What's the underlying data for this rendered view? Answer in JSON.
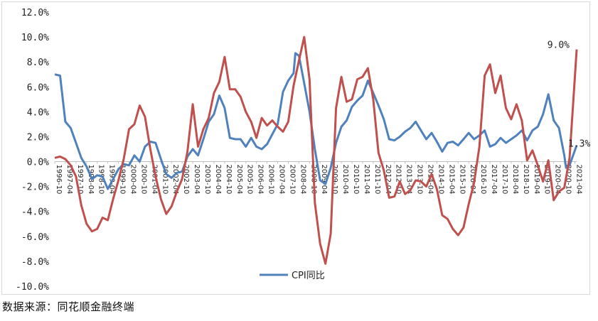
{
  "chart_data": {
    "type": "line",
    "title": "",
    "xlabel": "",
    "ylabel": "",
    "ylim": [
      -10,
      12
    ],
    "yticks": [
      "12.0%",
      "10.0%",
      "8.0%",
      "6.0%",
      "4.0%",
      "2.0%",
      "0.0%",
      "-2.0%",
      "-4.0%",
      "-6.0%",
      "-8.0%",
      "-10.0%"
    ],
    "xticks": [
      "1996-10",
      "1997-04",
      "1997-10",
      "1998-04",
      "1998-10",
      "1999-04",
      "1999-10",
      "2000-04",
      "2000-10",
      "2001-04",
      "2001-10",
      "2002-04",
      "2002-10",
      "2003-04",
      "2003-10",
      "2004-04",
      "2004-10",
      "2005-04",
      "2005-10",
      "2006-04",
      "2006-10",
      "2007-04",
      "2007-10",
      "2008-04",
      "2008-10",
      "2009-04",
      "2009-10",
      "2010-04",
      "2010-10",
      "2011-04",
      "2011-10",
      "2012-04",
      "2012-10",
      "2013-04",
      "2013-10",
      "2014-04",
      "2014-10",
      "2015-04",
      "2015-10",
      "2016-04",
      "2016-10",
      "2017-04",
      "2017-10",
      "2018-04",
      "2018-10",
      "2019-04",
      "2019-10",
      "2020-04",
      "2020-10",
      "2021-04"
    ],
    "grid": false,
    "legend": "bottom",
    "series": [
      {
        "name": "CPI同比",
        "color": "#4f81bd",
        "points": [
          [
            "1996-10",
            7.0
          ],
          [
            "1997-01",
            6.9
          ],
          [
            "1997-04",
            3.2
          ],
          [
            "1997-07",
            2.7
          ],
          [
            "1997-10",
            1.5
          ],
          [
            "1998-01",
            0.3
          ],
          [
            "1998-04",
            -0.4
          ],
          [
            "1998-07",
            -1.4
          ],
          [
            "1998-10",
            -1.1
          ],
          [
            "1999-01",
            -1.2
          ],
          [
            "1999-04",
            -2.2
          ],
          [
            "1999-07",
            -1.4
          ],
          [
            "1999-10",
            -0.6
          ],
          [
            "2000-01",
            -0.2
          ],
          [
            "2000-04",
            -0.3
          ],
          [
            "2000-07",
            0.5
          ],
          [
            "2000-10",
            0.0
          ],
          [
            "2001-01",
            1.2
          ],
          [
            "2001-04",
            1.6
          ],
          [
            "2001-07",
            1.5
          ],
          [
            "2001-10",
            0.2
          ],
          [
            "2002-01",
            -1.0
          ],
          [
            "2002-04",
            -1.3
          ],
          [
            "2002-07",
            -0.9
          ],
          [
            "2002-10",
            -0.8
          ],
          [
            "2003-01",
            0.4
          ],
          [
            "2003-04",
            1.0
          ],
          [
            "2003-07",
            0.5
          ],
          [
            "2003-10",
            1.8
          ],
          [
            "2004-01",
            3.2
          ],
          [
            "2004-04",
            3.8
          ],
          [
            "2004-07",
            5.3
          ],
          [
            "2004-10",
            4.3
          ],
          [
            "2005-01",
            1.9
          ],
          [
            "2005-04",
            1.8
          ],
          [
            "2005-07",
            1.8
          ],
          [
            "2005-10",
            1.2
          ],
          [
            "2006-01",
            1.9
          ],
          [
            "2006-04",
            1.2
          ],
          [
            "2006-07",
            1.0
          ],
          [
            "2006-10",
            1.4
          ],
          [
            "2007-01",
            2.2
          ],
          [
            "2007-04",
            3.0
          ],
          [
            "2007-07",
            5.6
          ],
          [
            "2007-10",
            6.5
          ],
          [
            "2008-01",
            7.1
          ],
          [
            "2008-02",
            8.7
          ],
          [
            "2008-04",
            8.5
          ],
          [
            "2008-07",
            6.3
          ],
          [
            "2008-10",
            4.0
          ],
          [
            "2009-01",
            1.0
          ],
          [
            "2009-04",
            -1.5
          ],
          [
            "2009-07",
            -1.8
          ],
          [
            "2009-10",
            -0.5
          ],
          [
            "2010-01",
            1.5
          ],
          [
            "2010-04",
            2.8
          ],
          [
            "2010-07",
            3.3
          ],
          [
            "2010-10",
            4.4
          ],
          [
            "2011-01",
            4.9
          ],
          [
            "2011-04",
            5.3
          ],
          [
            "2011-07",
            6.5
          ],
          [
            "2011-10",
            5.5
          ],
          [
            "2012-01",
            4.5
          ],
          [
            "2012-04",
            3.4
          ],
          [
            "2012-07",
            1.8
          ],
          [
            "2012-10",
            1.7
          ],
          [
            "2013-01",
            2.0
          ],
          [
            "2013-04",
            2.4
          ],
          [
            "2013-07",
            2.7
          ],
          [
            "2013-10",
            3.2
          ],
          [
            "2014-01",
            2.5
          ],
          [
            "2014-04",
            1.8
          ],
          [
            "2014-07",
            2.3
          ],
          [
            "2014-10",
            1.6
          ],
          [
            "2015-01",
            0.8
          ],
          [
            "2015-04",
            1.5
          ],
          [
            "2015-07",
            1.6
          ],
          [
            "2015-10",
            1.3
          ],
          [
            "2016-01",
            1.8
          ],
          [
            "2016-04",
            2.3
          ],
          [
            "2016-07",
            1.8
          ],
          [
            "2016-10",
            2.1
          ],
          [
            "2017-01",
            2.5
          ],
          [
            "2017-04",
            1.2
          ],
          [
            "2017-07",
            1.4
          ],
          [
            "2017-10",
            1.9
          ],
          [
            "2018-01",
            1.5
          ],
          [
            "2018-04",
            1.8
          ],
          [
            "2018-07",
            2.1
          ],
          [
            "2018-10",
            2.5
          ],
          [
            "2019-01",
            1.7
          ],
          [
            "2019-04",
            2.5
          ],
          [
            "2019-07",
            2.8
          ],
          [
            "2019-10",
            3.8
          ],
          [
            "2020-01",
            5.4
          ],
          [
            "2020-04",
            3.3
          ],
          [
            "2020-07",
            2.7
          ],
          [
            "2020-10",
            0.5
          ],
          [
            "2020-11",
            -0.5
          ],
          [
            "2021-01",
            -0.3
          ],
          [
            "2021-04",
            0.9
          ],
          [
            "2021-05",
            1.3
          ]
        ]
      },
      {
        "name": "",
        "color": "#c0504d",
        "points": [
          [
            "1996-10",
            0.3
          ],
          [
            "1997-01",
            0.4
          ],
          [
            "1997-04",
            0.2
          ],
          [
            "1997-07",
            -0.3
          ],
          [
            "1997-10",
            -1.2
          ],
          [
            "1998-01",
            -3.5
          ],
          [
            "1998-04",
            -5.0
          ],
          [
            "1998-07",
            -5.6
          ],
          [
            "1998-10",
            -5.4
          ],
          [
            "1999-01",
            -4.5
          ],
          [
            "1999-04",
            -4.7
          ],
          [
            "1999-07",
            -3.0
          ],
          [
            "1999-10",
            -1.5
          ],
          [
            "2000-01",
            0.2
          ],
          [
            "2000-04",
            2.6
          ],
          [
            "2000-07",
            3.0
          ],
          [
            "2000-10",
            4.5
          ],
          [
            "2001-01",
            3.6
          ],
          [
            "2001-04",
            1.0
          ],
          [
            "2001-07",
            -1.2
          ],
          [
            "2001-10",
            -3.0
          ],
          [
            "2002-01",
            -4.2
          ],
          [
            "2002-04",
            -3.6
          ],
          [
            "2002-07",
            -2.4
          ],
          [
            "2002-10",
            -1.4
          ],
          [
            "2003-01",
            0.8
          ],
          [
            "2003-04",
            4.6
          ],
          [
            "2003-07",
            1.2
          ],
          [
            "2003-10",
            2.6
          ],
          [
            "2004-01",
            3.5
          ],
          [
            "2004-04",
            5.5
          ],
          [
            "2004-07",
            6.4
          ],
          [
            "2004-10",
            8.4
          ],
          [
            "2005-01",
            5.8
          ],
          [
            "2005-04",
            5.8
          ],
          [
            "2005-07",
            5.2
          ],
          [
            "2005-10",
            4.0
          ],
          [
            "2006-01",
            3.2
          ],
          [
            "2006-04",
            1.9
          ],
          [
            "2006-07",
            3.5
          ],
          [
            "2006-10",
            2.9
          ],
          [
            "2007-01",
            3.3
          ],
          [
            "2007-04",
            2.8
          ],
          [
            "2007-07",
            2.4
          ],
          [
            "2007-10",
            3.2
          ],
          [
            "2008-01",
            6.1
          ],
          [
            "2008-04",
            8.1
          ],
          [
            "2008-07",
            10.0
          ],
          [
            "2008-10",
            6.6
          ],
          [
            "2009-01",
            -3.3
          ],
          [
            "2009-04",
            -6.6
          ],
          [
            "2009-07",
            -8.2
          ],
          [
            "2009-10",
            -5.8
          ],
          [
            "2010-01",
            4.3
          ],
          [
            "2010-04",
            6.8
          ],
          [
            "2010-07",
            4.8
          ],
          [
            "2010-10",
            5.0
          ],
          [
            "2011-01",
            6.6
          ],
          [
            "2011-04",
            6.8
          ],
          [
            "2011-07",
            7.5
          ],
          [
            "2011-10",
            5.0
          ],
          [
            "2012-01",
            0.7
          ],
          [
            "2012-04",
            -0.7
          ],
          [
            "2012-07",
            -2.9
          ],
          [
            "2012-10",
            -2.8
          ],
          [
            "2013-01",
            -1.6
          ],
          [
            "2013-04",
            -2.6
          ],
          [
            "2013-07",
            -2.3
          ],
          [
            "2013-10",
            -1.5
          ],
          [
            "2014-01",
            -1.6
          ],
          [
            "2014-04",
            -2.0
          ],
          [
            "2014-07",
            -1.0
          ],
          [
            "2014-10",
            -2.2
          ],
          [
            "2015-01",
            -4.3
          ],
          [
            "2015-04",
            -4.6
          ],
          [
            "2015-07",
            -5.4
          ],
          [
            "2015-10",
            -5.9
          ],
          [
            "2016-01",
            -5.3
          ],
          [
            "2016-04",
            -3.4
          ],
          [
            "2016-07",
            -1.7
          ],
          [
            "2016-10",
            1.2
          ],
          [
            "2017-01",
            6.9
          ],
          [
            "2017-04",
            7.8
          ],
          [
            "2017-07",
            5.5
          ],
          [
            "2017-10",
            6.9
          ],
          [
            "2018-01",
            4.3
          ],
          [
            "2018-04",
            3.4
          ],
          [
            "2018-07",
            4.6
          ],
          [
            "2018-10",
            3.3
          ],
          [
            "2019-01",
            0.1
          ],
          [
            "2019-04",
            0.9
          ],
          [
            "2019-07",
            -0.3
          ],
          [
            "2019-10",
            -1.6
          ],
          [
            "2020-01",
            0.1
          ],
          [
            "2020-04",
            -3.1
          ],
          [
            "2020-07",
            -2.4
          ],
          [
            "2020-10",
            -2.1
          ],
          [
            "2021-01",
            0.3
          ],
          [
            "2021-04",
            6.8
          ],
          [
            "2021-05",
            9.0
          ]
        ]
      }
    ],
    "annotations": [
      {
        "text": "9.0%",
        "series": 1,
        "point": "2021-05"
      },
      {
        "text": "1.3%",
        "series": 0,
        "point": "2021-05"
      }
    ]
  },
  "source": "数据来源：同花顺金融终端"
}
